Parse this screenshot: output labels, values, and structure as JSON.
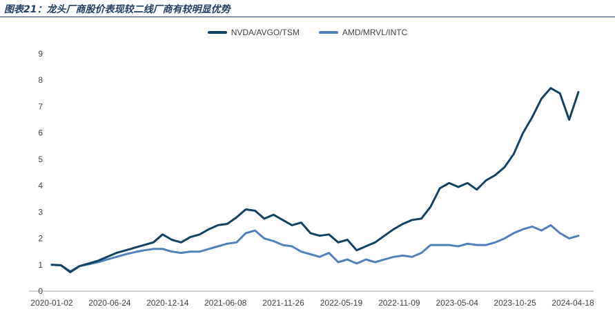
{
  "title": "图表21：龙头厂商股价表现较二线厂商有较明显优势",
  "chart_data": {
    "type": "line",
    "title": "",
    "xlabel": "",
    "ylabel": "",
    "ylim": [
      0,
      9
    ],
    "yticks": [
      "0",
      "1",
      "2",
      "3",
      "4",
      "5",
      "6",
      "7",
      "8",
      "9"
    ],
    "xticks": [
      "2020-01-02",
      "2020-06-24",
      "2020-12-14",
      "2021-06-08",
      "2021-11-26",
      "2022-05-19",
      "2022-11-09",
      "2023-05-04",
      "2023-10-25",
      "2024-04-18"
    ],
    "grid": false,
    "legend": "top-center",
    "series": [
      {
        "name": "NVDA/AVGO/TSM",
        "color": "#0e4266",
        "values": [
          1.0,
          0.98,
          0.72,
          0.95,
          1.05,
          1.15,
          1.3,
          1.45,
          1.55,
          1.65,
          1.75,
          1.85,
          2.15,
          1.95,
          1.85,
          2.05,
          2.15,
          2.35,
          2.5,
          2.55,
          2.8,
          3.1,
          3.05,
          2.75,
          2.9,
          2.7,
          2.5,
          2.6,
          2.2,
          2.1,
          2.15,
          1.85,
          1.95,
          1.55,
          1.7,
          1.85,
          2.1,
          2.35,
          2.55,
          2.7,
          2.75,
          3.2,
          3.9,
          4.1,
          3.95,
          4.1,
          3.85,
          4.2,
          4.4,
          4.7,
          5.2,
          6.0,
          6.6,
          7.3,
          7.7,
          7.5,
          6.5,
          7.55
        ]
      },
      {
        "name": "AMD/MRVL/INTC",
        "color": "#4f81bd",
        "values": [
          1.0,
          0.98,
          0.75,
          0.95,
          1.02,
          1.1,
          1.2,
          1.3,
          1.4,
          1.48,
          1.55,
          1.6,
          1.6,
          1.5,
          1.45,
          1.5,
          1.5,
          1.6,
          1.7,
          1.8,
          1.85,
          2.2,
          2.3,
          2.0,
          1.9,
          1.75,
          1.7,
          1.5,
          1.4,
          1.3,
          1.45,
          1.1,
          1.2,
          1.05,
          1.2,
          1.1,
          1.2,
          1.3,
          1.35,
          1.3,
          1.45,
          1.75,
          1.75,
          1.75,
          1.7,
          1.8,
          1.75,
          1.75,
          1.85,
          2.0,
          2.2,
          2.35,
          2.45,
          2.3,
          2.5,
          2.2,
          2.0,
          2.1
        ]
      }
    ]
  }
}
